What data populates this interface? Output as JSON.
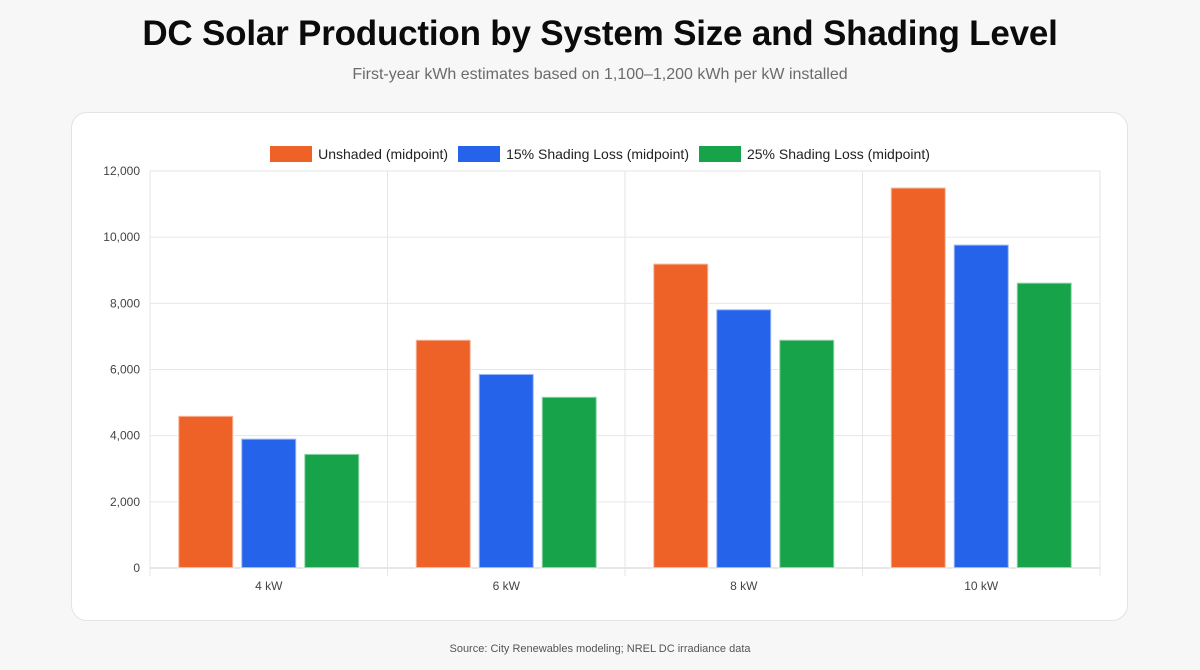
{
  "header": {
    "title": "DC Solar Production by System Size and Shading Level",
    "subtitle": "First-year kWh estimates based on 1,100–1,200 kWh per kW installed"
  },
  "footer": {
    "source": "Source: City Renewables modeling; NREL DC irradiance data"
  },
  "chart_data": {
    "type": "bar",
    "categories": [
      "4 kW",
      "6 kW",
      "8 kW",
      "10 kW"
    ],
    "series": [
      {
        "name": "Unshaded (midpoint)",
        "color": "#ee6228",
        "values": [
          4600,
          6900,
          9200,
          11500
        ]
      },
      {
        "name": "15% Shading Loss (midpoint)",
        "color": "#2563eb",
        "values": [
          3910,
          5865,
          7820,
          9775
        ]
      },
      {
        "name": "25% Shading Loss (midpoint)",
        "color": "#16a34a",
        "values": [
          3450,
          5175,
          6900,
          8625
        ]
      }
    ],
    "ylim": [
      0,
      12000
    ],
    "yticks": [
      0,
      2000,
      4000,
      6000,
      8000,
      10000,
      12000
    ],
    "ytick_labels": [
      "0",
      "2,000",
      "4,000",
      "6,000",
      "8,000",
      "10,000",
      "12,000"
    ],
    "grid": true,
    "legend_position": "top-center"
  }
}
